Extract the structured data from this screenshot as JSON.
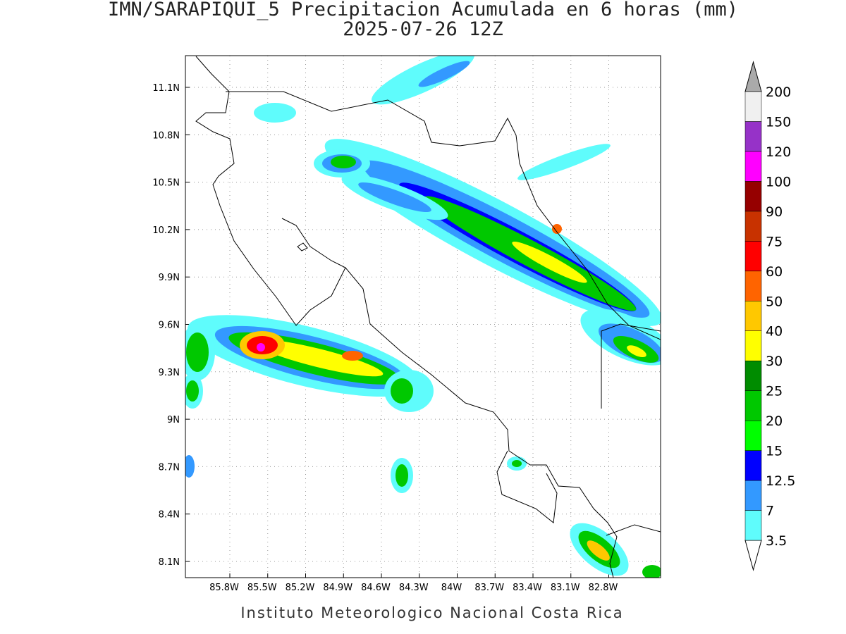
{
  "title": "IMN/SARAPIQUI_5 Precipitacion Acumulada en 6 horas (mm)",
  "subtitle": "2025-07-26 12Z",
  "map": {
    "lon_ticks": [
      "85.8W",
      "85.5W",
      "85.2W",
      "84.9W",
      "84.6W",
      "84.3W",
      "84W",
      "83.7W",
      "83.4W",
      "83.1W",
      "82.8W"
    ],
    "lat_ticks": [
      "11.1N",
      "10.8N",
      "10.5N",
      "10.2N",
      "9.9N",
      "9.6N",
      "9.3N",
      "9N",
      "8.7N",
      "8.4N",
      "8.1N"
    ]
  },
  "colorbar": {
    "levels": [
      3.5,
      7,
      12.5,
      15,
      20,
      25,
      30,
      40,
      50,
      60,
      75,
      90,
      100,
      120,
      150,
      200
    ],
    "colors": [
      "#5ffcfc",
      "#3399ff",
      "#0000ff",
      "#00ff00",
      "#00c800",
      "#008c00",
      "#ffff00",
      "#ffc800",
      "#ff6400",
      "#ff0000",
      "#c83200",
      "#960000",
      "#ff00ff",
      "#9632c8",
      "#f0f0f0"
    ],
    "under_color": "#ffffff",
    "over_color": "#aaaaaa"
  },
  "footer": "Instituto Meteorologico Nacional Costa Rica"
}
